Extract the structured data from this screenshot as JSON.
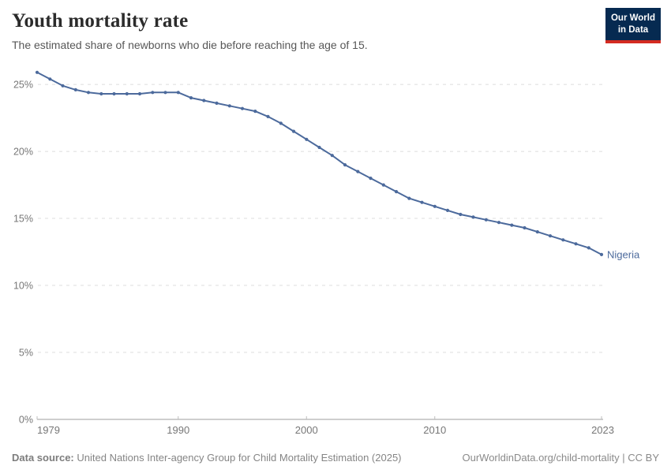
{
  "header": {
    "title": "Youth mortality rate",
    "subtitle": "The estimated share of newborns who die before reaching the age of 15."
  },
  "logo": {
    "line1": "Our World",
    "line2": "in Data",
    "bg_color": "#062a51",
    "accent_color": "#d42b21"
  },
  "chart_data": {
    "type": "line",
    "title": "Youth mortality rate",
    "xlabel": "",
    "ylabel": "",
    "x": [
      1979,
      1980,
      1981,
      1982,
      1983,
      1984,
      1985,
      1986,
      1987,
      1988,
      1989,
      1990,
      1991,
      1992,
      1993,
      1994,
      1995,
      1996,
      1997,
      1998,
      1999,
      2000,
      2001,
      2002,
      2003,
      2004,
      2005,
      2006,
      2007,
      2008,
      2009,
      2010,
      2011,
      2012,
      2013,
      2014,
      2015,
      2016,
      2017,
      2018,
      2019,
      2020,
      2021,
      2022,
      2023
    ],
    "series": [
      {
        "name": "Nigeria",
        "color": "#4C6A9C",
        "values": [
          25.9,
          25.4,
          24.9,
          24.6,
          24.4,
          24.3,
          24.3,
          24.3,
          24.3,
          24.4,
          24.4,
          24.4,
          24.0,
          23.8,
          23.6,
          23.4,
          23.2,
          23.0,
          22.6,
          22.1,
          21.5,
          20.9,
          20.3,
          19.7,
          19.0,
          18.5,
          18.0,
          17.5,
          17.0,
          16.5,
          16.2,
          15.9,
          15.6,
          15.3,
          15.1,
          14.9,
          14.7,
          14.5,
          14.3,
          14.0,
          13.7,
          13.4,
          13.1,
          12.8,
          12.3
        ]
      }
    ],
    "x_ticks": [
      1979,
      1990,
      2000,
      2010,
      2023
    ],
    "y_ticks": [
      0,
      5,
      10,
      15,
      20,
      25
    ],
    "y_suffix": "%",
    "xlim": [
      1979,
      2023
    ],
    "ylim": [
      0,
      26.3
    ],
    "grid": "horizontal-dashed",
    "legend": "end-of-line-label",
    "colors": {
      "gridline": "#dcdcdc",
      "axis_line": "#9c9c9c",
      "tick_mark": "#bdbdbd",
      "tick_label": "#777777"
    }
  },
  "footer": {
    "source_label": "Data source:",
    "source_text": "United Nations Inter-agency Group for Child Mortality Estimation (2025)",
    "rights": "OurWorldinData.org/child-mortality | CC BY"
  }
}
